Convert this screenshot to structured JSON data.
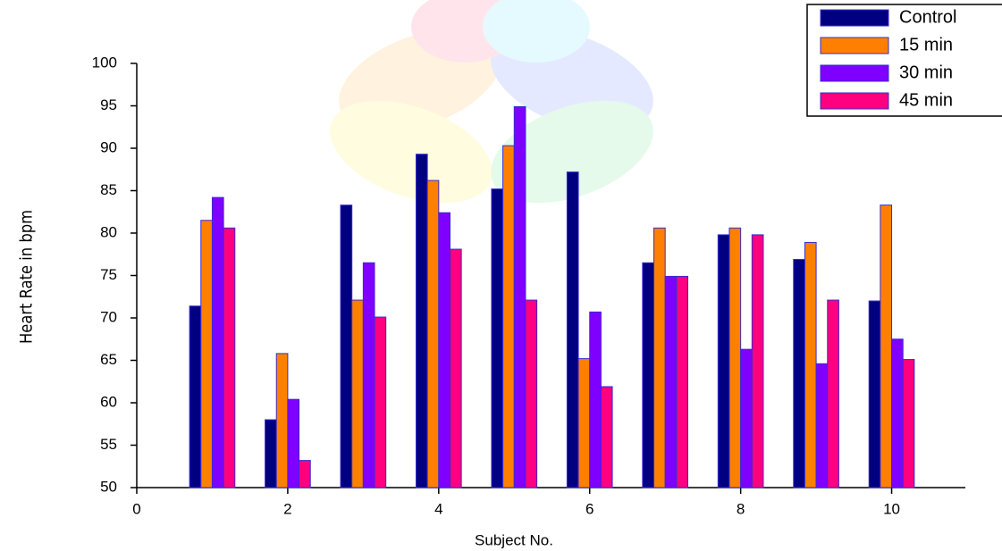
{
  "chart_data": {
    "type": "bar",
    "xlabel": "Subject No.",
    "ylabel": "Heart Rate in bpm",
    "x": [
      1,
      2,
      3,
      4,
      5,
      6,
      7,
      8,
      9,
      10
    ],
    "series": [
      {
        "name": "Control",
        "color": "#000080",
        "values": [
          71.4,
          58,
          83.3,
          89.3,
          85.2,
          87.2,
          76.5,
          79.8,
          76.9,
          72
        ]
      },
      {
        "name": "15 min",
        "color": "#ff8000",
        "values": [
          81.5,
          65.8,
          72.1,
          86.2,
          90.3,
          65.2,
          80.6,
          80.6,
          78.9,
          83.3
        ]
      },
      {
        "name": "30 min",
        "color": "#8000ff",
        "values": [
          84.2,
          60.4,
          76.5,
          82.4,
          94.9,
          70.7,
          74.9,
          66.3,
          64.6,
          67.5
        ]
      },
      {
        "name": "45 min",
        "color": "#ff0080",
        "values": [
          80.6,
          53.2,
          70.1,
          78.1,
          72.1,
          61.9,
          74.9,
          79.8,
          72.1,
          65.1
        ]
      }
    ],
    "xlim": [
      0,
      11
    ],
    "xticks": [
      0,
      2,
      4,
      6,
      8,
      10
    ],
    "ylim": [
      50,
      100
    ],
    "yticks": [
      50,
      55,
      60,
      65,
      70,
      75,
      80,
      85,
      90,
      95,
      100
    ],
    "legend": "upper right"
  }
}
